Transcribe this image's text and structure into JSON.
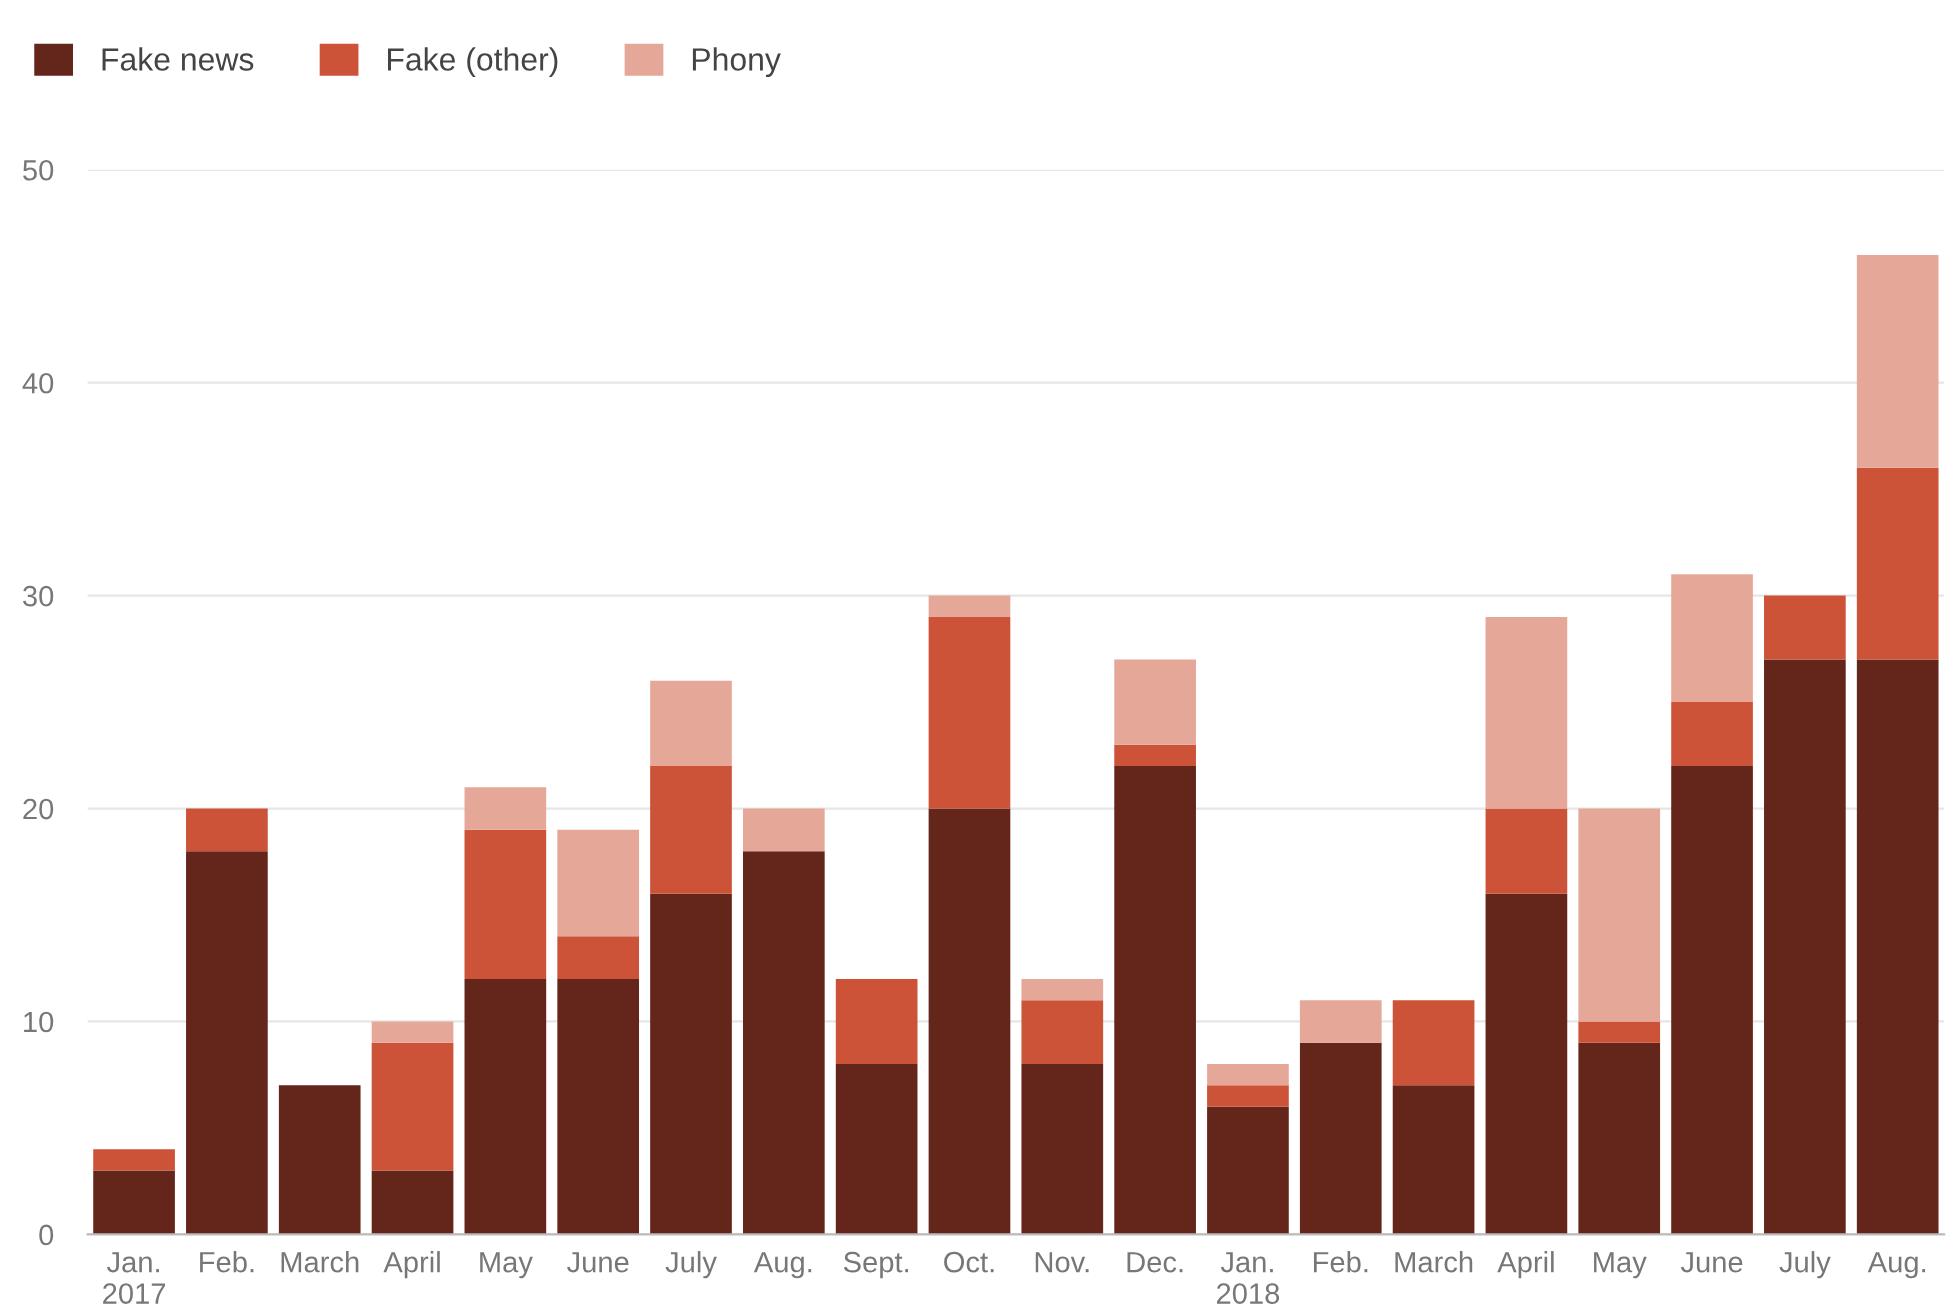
{
  "chart_data": {
    "type": "bar",
    "stacked": true,
    "categories": [
      "Jan.\n2017",
      "Feb.",
      "March",
      "April",
      "May",
      "June",
      "July",
      "Aug.",
      "Sept.",
      "Oct.",
      "Nov.",
      "Dec.",
      "Jan.\n2018",
      "Feb.",
      "March",
      "April",
      "May",
      "June",
      "July",
      "Aug."
    ],
    "series": [
      {
        "name": "Fake news",
        "color": "#64261a",
        "values": [
          3,
          18,
          7,
          3,
          12,
          12,
          16,
          18,
          8,
          20,
          8,
          22,
          6,
          9,
          7,
          16,
          9,
          22,
          27,
          27
        ]
      },
      {
        "name": "Fake (other)",
        "color": "#cc5238",
        "values": [
          1,
          2,
          0,
          6,
          7,
          2,
          6,
          0,
          4,
          9,
          3,
          1,
          1,
          0,
          4,
          4,
          1,
          3,
          3,
          9
        ]
      },
      {
        "name": "Phony",
        "color": "#e5a898",
        "values": [
          0,
          0,
          0,
          1,
          2,
          5,
          4,
          2,
          0,
          1,
          1,
          4,
          1,
          2,
          0,
          9,
          10,
          6,
          0,
          10
        ]
      }
    ],
    "ylim": [
      0,
      50
    ],
    "yticks": [
      0,
      10,
      20,
      30,
      40,
      50
    ],
    "grid": "y",
    "legend": "top left"
  }
}
